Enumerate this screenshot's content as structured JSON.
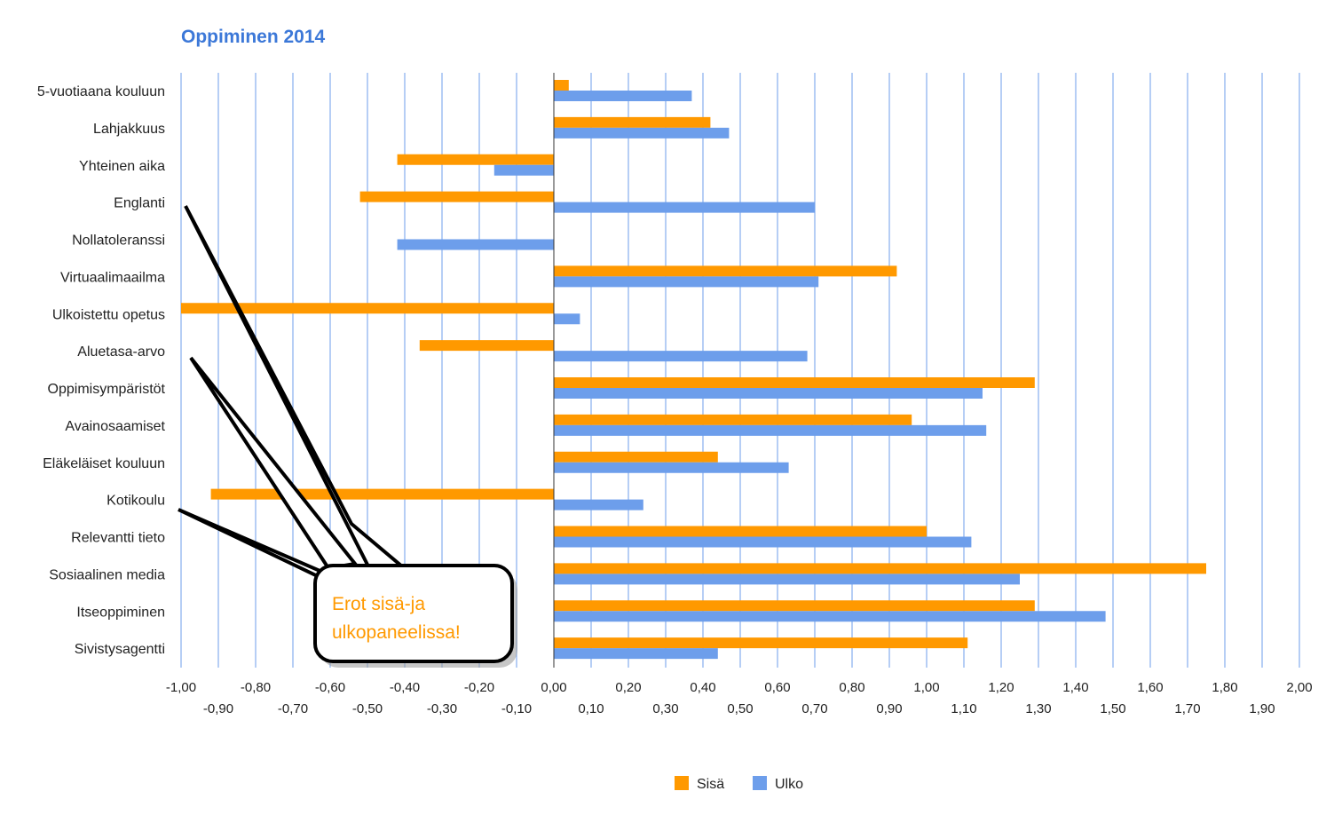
{
  "chart_data": {
    "type": "bar",
    "orientation": "horizontal",
    "title": "Oppiminen 2014",
    "categories": [
      "5-vuotiaana kouluun",
      "Lahjakkuus",
      "Yhteinen aika",
      "Englanti",
      "Nollatoleranssi",
      "Virtuaalimaailma",
      "Ulkoistettu opetus",
      "Aluetasa-arvo",
      "Oppimisympäristöt",
      "Avainosaamiset",
      "Eläkeläiset kouluun",
      "Kotikoulu",
      "Relevantti tieto",
      "Sosiaalinen media",
      "Itseoppiminen",
      "Sivistysagentti"
    ],
    "series": [
      {
        "name": "Sisä",
        "color": "#ff9900",
        "values": [
          0.04,
          0.42,
          -0.42,
          -0.52,
          0.0,
          0.92,
          -1.0,
          -0.36,
          1.29,
          0.96,
          0.44,
          -0.92,
          1.0,
          1.75,
          1.29,
          1.11
        ]
      },
      {
        "name": "Ulko",
        "color": "#6d9eeb",
        "values": [
          0.37,
          0.47,
          -0.16,
          0.7,
          -0.42,
          0.71,
          0.07,
          0.68,
          1.15,
          1.16,
          0.63,
          0.24,
          1.12,
          1.25,
          1.48,
          0.44
        ]
      }
    ],
    "xlim": [
      -1.0,
      2.0
    ],
    "ticks_upper": [
      "-1,00",
      "-0,80",
      "-0,60",
      "-0,40",
      "-0,20",
      "0,00",
      "0,20",
      "0,40",
      "0,60",
      "0,80",
      "1,00",
      "1,20",
      "1,40",
      "1,60",
      "1,80",
      "2,00"
    ],
    "ticks_lower": [
      "-0,90",
      "-0,70",
      "-0,50",
      "-0,30",
      "-0,10",
      "0,10",
      "0,30",
      "0,50",
      "0,70",
      "0,90",
      "1,10",
      "1,30",
      "1,50",
      "1,70",
      "1,90"
    ],
    "grid": true,
    "legend": "bottom",
    "title_color": "#3c78d8",
    "annotation": {
      "text_lines": [
        "Erot sisä-ja",
        "ulkopaneelissa!"
      ],
      "color": "#ff9900"
    }
  }
}
